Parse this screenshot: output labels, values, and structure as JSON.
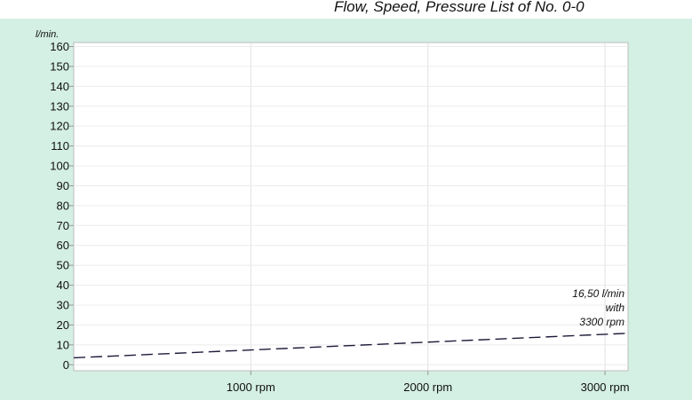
{
  "chart_data": {
    "type": "line",
    "title": "Flow, Speed, Pressure List of No. 0-0",
    "ylabel": "l/min.",
    "xlabel": "",
    "x_ticks": [
      {
        "value": 1000,
        "label": "1000 rpm"
      },
      {
        "value": 2000,
        "label": "2000 rpm"
      },
      {
        "value": 3000,
        "label": "3000 rpm"
      }
    ],
    "y_ticks": [
      0,
      10,
      20,
      30,
      40,
      50,
      60,
      70,
      80,
      90,
      100,
      110,
      120,
      130,
      140,
      150,
      160
    ],
    "xlim": [
      0,
      3130
    ],
    "ylim": [
      -3,
      162
    ],
    "grid": true,
    "series": [
      {
        "line_style": "dashed",
        "color": "#1c1c3a",
        "x": [
          0,
          3300
        ],
        "y": [
          3.5,
          16.5
        ]
      }
    ],
    "annotation": {
      "lines": [
        "16,50 l/min",
        "with",
        "3300 rpm"
      ]
    }
  }
}
